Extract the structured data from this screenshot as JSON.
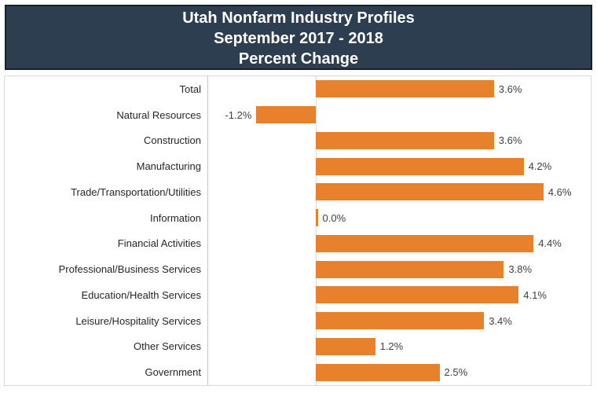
{
  "title": {
    "line1": "Utah Nonfarm Industry Profiles",
    "line2": "September 2017 - 2018",
    "line3": "Percent Change"
  },
  "chart_data": {
    "type": "bar",
    "orientation": "horizontal",
    "title": "Utah Nonfarm Industry Profiles September 2017 - 2018 Percent Change",
    "xlabel": "",
    "ylabel": "",
    "xlim": [
      -2.2,
      5.6
    ],
    "grid": "off",
    "zero_baseline": "dotted",
    "legend": "none",
    "categories": [
      "Total",
      "Natural Resources",
      "Construction",
      "Manufacturing",
      "Trade/Transportation/Utilities",
      "Information",
      "Financial Activities",
      "Professional/Business Services",
      "Education/Health Services",
      "Leisure/Hospitality Services",
      "Other Services",
      "Government"
    ],
    "values": [
      3.6,
      -1.2,
      3.6,
      4.2,
      4.6,
      0.0,
      4.4,
      3.8,
      4.1,
      3.4,
      1.2,
      2.5
    ],
    "value_labels": [
      "3.6%",
      "-1.2%",
      "3.6%",
      "4.2%",
      "4.6%",
      "0.0%",
      "4.4%",
      "3.8%",
      "4.1%",
      "3.4%",
      "1.2%",
      "2.5%"
    ],
    "colors": {
      "bar": "#E8812B",
      "header_background": "#2C3E50",
      "header_border": "#17202A",
      "header_text": "#FFFFFF",
      "axis_line": "#C6C6C6",
      "plot_border": "#D9D9D9",
      "zero_line": "#BFBFBF",
      "category_label": "#262626",
      "value_label": "#404040"
    }
  }
}
